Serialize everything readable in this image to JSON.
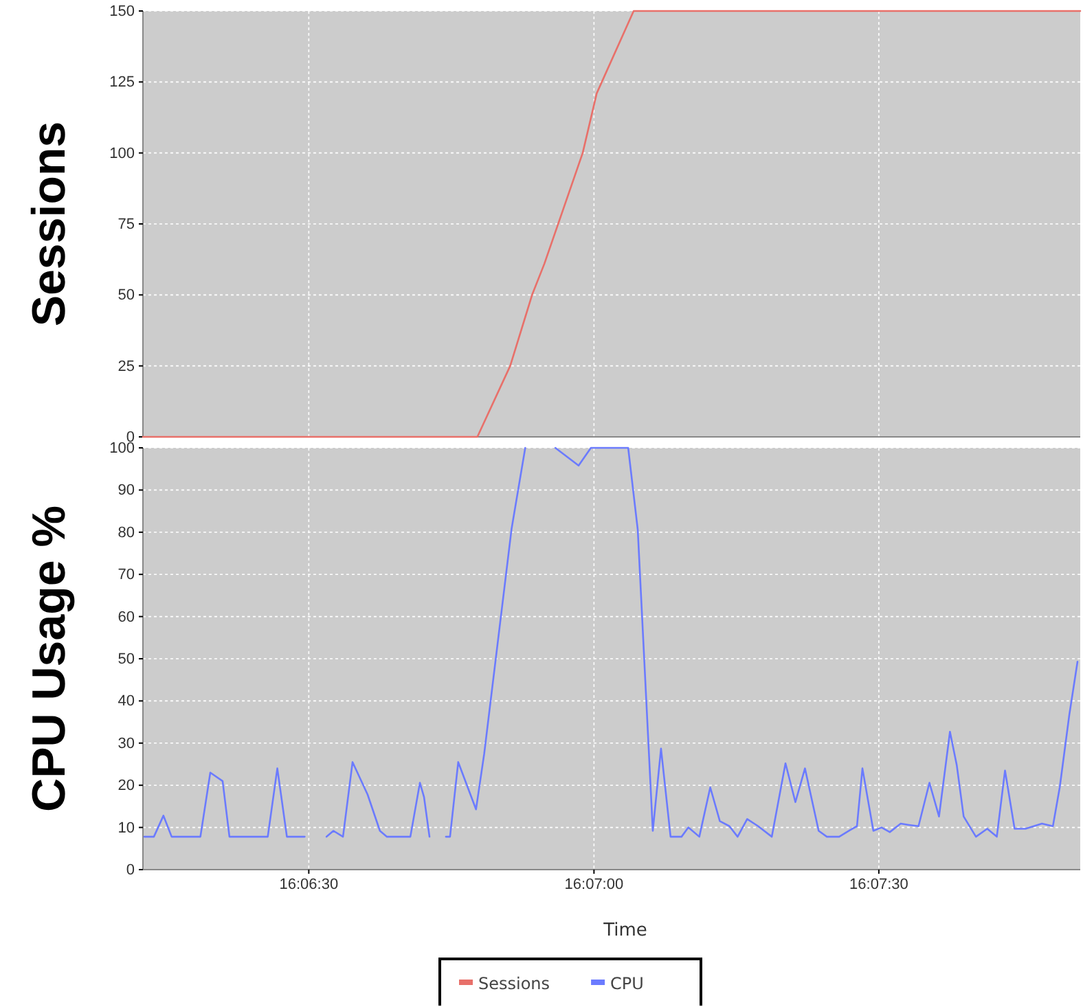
{
  "chart_data": [
    {
      "type": "line",
      "ylabel": "Sessions",
      "xlim": [
        16.10348,
        16.13089
      ],
      "xticks": [
        {
          "value": 16.10833,
          "label": null
        },
        {
          "value": 16.11667,
          "label": null
        },
        {
          "value": 16.125,
          "label": null
        }
      ],
      "ylim": [
        0,
        150
      ],
      "yticks": [
        0,
        25,
        50,
        75,
        100,
        125,
        150
      ],
      "grid": true,
      "tick_labels": "y",
      "legend": "bottom",
      "marker": "none",
      "series": [
        {
          "name": "Sessions",
          "color": "#e8706a",
          "x": [
            16.10348,
            16.11326,
            16.11422,
            16.11486,
            16.11522,
            16.11634,
            16.11675,
            16.11783,
            16.13089
          ],
          "values": [
            0,
            0,
            25,
            50,
            61,
            100,
            121,
            150,
            150
          ]
        }
      ]
    },
    {
      "type": "line",
      "ylabel": "CPU Usage %",
      "xlabel": "Time",
      "xlim": [
        16.10348,
        16.13089
      ],
      "xticks": [
        {
          "value": 16.10833,
          "label": "16:06:30"
        },
        {
          "value": 16.11667,
          "label": "16:07:00"
        },
        {
          "value": 16.125,
          "label": "16:07:30"
        }
      ],
      "ylim": [
        0,
        100
      ],
      "yticks": [
        0,
        10,
        20,
        30,
        40,
        50,
        60,
        70,
        80,
        90,
        100
      ],
      "grid": true,
      "legend": "bottom",
      "marker": "none",
      "series": [
        {
          "name": "CPU",
          "color": "#6b7bff",
          "x": [
            16.10352,
            16.1038,
            16.10408,
            16.10432,
            16.10516,
            16.10545,
            16.10581,
            16.10601,
            16.10713,
            16.10741,
            16.10769,
            16.10821,
            16.10853,
            16.10885,
            16.10905,
            16.10933,
            16.10961,
            16.11005,
            16.11041,
            16.11061,
            16.1113,
            16.11158,
            16.1117,
            16.11186,
            16.1121,
            16.11234,
            16.11246,
            16.1127,
            16.11322,
            16.11346,
            16.11426,
            16.11466,
            16.1151,
            16.11554,
            16.11622,
            16.11658,
            16.11695,
            16.11767,
            16.11795,
            16.11839,
            16.11863,
            16.11891,
            16.11923,
            16.11943,
            16.11975,
            16.12007,
            16.12035,
            16.12063,
            16.12087,
            16.12115,
            16.12147,
            16.12187,
            16.12227,
            16.12256,
            16.12284,
            16.12324,
            16.12348,
            16.12384,
            16.12416,
            16.12436,
            16.12452,
            16.12484,
            16.12508,
            16.12532,
            16.12564,
            16.12588,
            16.12616,
            16.12648,
            16.12676,
            16.12708,
            16.12728,
            16.12748,
            16.12784,
            16.12817,
            16.12845,
            16.12869,
            16.12897,
            16.12929,
            16.12977,
            16.13009,
            16.13029,
            16.13057,
            16.13081
          ],
          "values": [
            7.8,
            7.8,
            12.8,
            7.8,
            7.8,
            23,
            21,
            7.8,
            7.8,
            24,
            7.8,
            7.8,
            null,
            7.8,
            9.2,
            7.8,
            25.5,
            17.8,
            9.2,
            7.8,
            7.8,
            20.6,
            17.2,
            7.8,
            null,
            7.8,
            7.8,
            25.5,
            14.3,
            27.5,
            80.8,
            100,
            null,
            100,
            95.8,
            100,
            100,
            100,
            80.6,
            9.2,
            28.7,
            7.8,
            7.8,
            10,
            7.8,
            19.5,
            11.5,
            10.3,
            7.8,
            12,
            10.3,
            7.8,
            25.2,
            16,
            24,
            9.2,
            7.8,
            7.8,
            9.4,
            10.3,
            24,
            9.2,
            10,
            8.9,
            10.9,
            10.6,
            10.3,
            20.6,
            12.6,
            32.7,
            24.7,
            12.6,
            7.8,
            9.7,
            7.8,
            23.5,
            9.7,
            9.7,
            10.9,
            10.3,
            19.5,
            36.7,
            49.3
          ]
        }
      ]
    }
  ]
}
